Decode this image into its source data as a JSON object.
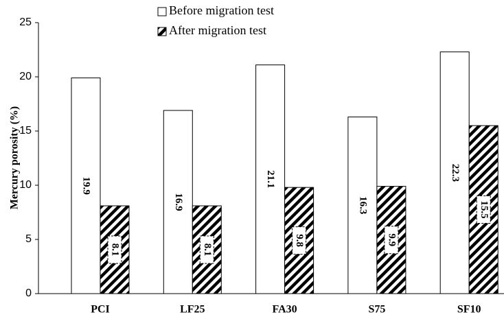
{
  "chart_data": {
    "type": "bar",
    "y_label": "Mercury porosity (%)",
    "categories": [
      "PCI",
      "LF25",
      "FA30",
      "S75",
      "SF10"
    ],
    "series": [
      {
        "name": "Before migration test",
        "color": "#ffffff",
        "hatch": false,
        "values": [
          19.9,
          16.9,
          21.1,
          16.3,
          22.3
        ]
      },
      {
        "name": "After migration test",
        "color": "#000000",
        "hatch": true,
        "values": [
          8.1,
          8.1,
          9.8,
          9.9,
          15.5
        ]
      }
    ],
    "ylim": [
      0,
      25
    ],
    "yticks": [
      0,
      5,
      10,
      15,
      20,
      25
    ],
    "grid": false,
    "legend": "top"
  }
}
